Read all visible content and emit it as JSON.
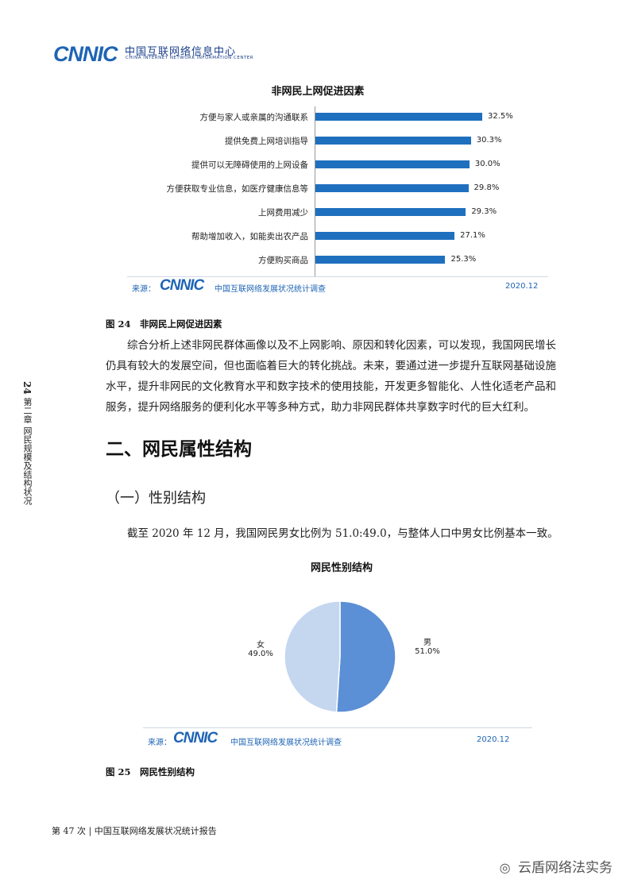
{
  "header": {
    "logo_mark": "CNNIC",
    "logo_cn": "中国互联网络信息中心",
    "logo_en": "CHINA INTERNET NETWORK INFORMATION CENTER"
  },
  "side": {
    "page_num": "24",
    "chapter": "第二章 网民规模及结构状况"
  },
  "figure24": {
    "title": "非网民上网促进因素",
    "caption": "图 24　非网民上网促进因素",
    "source_label": "来源：",
    "source_logo": "CNNIC",
    "source_name": "中国互联网络发展状况统计调查",
    "source_date": "2020.12"
  },
  "paragraph1": [
    "综合分析上述非网民群体画像以及不上网影响、原因和转化因素，可以发现，我国网民增长",
    "仍具有较大的发展空间，但也面临着巨大的转化挑战。未来，要通过进一步提升互联网基础设施",
    "水平，提升非网民的文化教育水平和数字技术的使用技能，开发更多智能化、人性化适老产品和",
    "服务，提升网络服务的便利化水平等多种方式，助力非网民群体共享数字时代的巨大红利。"
  ],
  "section": {
    "h2": "二、网民属性结构",
    "h3": "（一）性别结构",
    "para": "截至 2020 年 12 月，我国网民男女比例为 51.0:49.0，与整体人口中男女比例基本一致。"
  },
  "figure25": {
    "title": "网民性别结构",
    "caption": "图 25　网民性别结构",
    "source_label": "来源：",
    "source_logo": "CNNIC",
    "source_name": "中国互联网络发展状况统计调查",
    "source_date": "2020.12"
  },
  "footer": {
    "text": "第 47 次 | 中国互联网络发展状况统计报告"
  },
  "watermark": {
    "text": "云盾网络法实务"
  },
  "chart_data": [
    {
      "type": "bar",
      "orientation": "horizontal",
      "title": "非网民上网促进因素",
      "categories": [
        "方便与家人或亲属的沟通联系",
        "提供免费上网培训指导",
        "提供可以无障碍使用的上网设备",
        "方便获取专业信息，如医疗健康信息等",
        "上网费用减少",
        "帮助增加收入，如能卖出农产品",
        "方便购买商品"
      ],
      "values": [
        32.5,
        30.3,
        30.0,
        29.8,
        29.3,
        27.1,
        25.3
      ],
      "value_labels": [
        "32.5%",
        "30.3%",
        "30.0%",
        "29.8%",
        "29.3%",
        "27.1%",
        "25.3%"
      ],
      "xlim": [
        0,
        35
      ],
      "colors": {
        "bar": "#1f6fbf"
      }
    },
    {
      "type": "pie",
      "title": "网民性别结构",
      "slices": [
        {
          "name": "男",
          "value": 51.0,
          "label": "51.0%",
          "color": "#5b8fd6"
        },
        {
          "name": "女",
          "value": 49.0,
          "label": "49.0%",
          "color": "#c5d7ef"
        }
      ]
    }
  ]
}
